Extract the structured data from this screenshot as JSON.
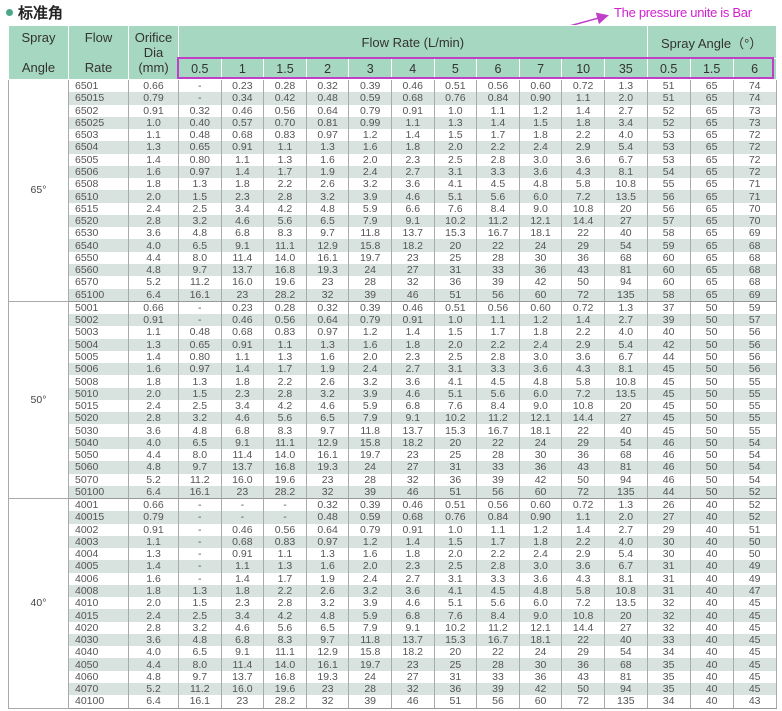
{
  "title": "标准角",
  "annotation": "The pressure unite is Bar",
  "colors": {
    "header": "#a6d7c0",
    "stripe": "#d8e2de",
    "annotation": "#c03fc8"
  },
  "headers": {
    "spray_angle": [
      "Spray",
      "Angle"
    ],
    "flow_rate": [
      "Flow",
      "Rate"
    ],
    "orifice": [
      "Orifice",
      "Dia",
      "(mm)"
    ],
    "flow_rate_group": "Flow Rate (L/min)",
    "spray_angle_group": "Spray Angle（°）",
    "pressures": [
      "0.5",
      "1",
      "1.5",
      "2",
      "3",
      "4",
      "5",
      "6",
      "7",
      "10",
      "35"
    ],
    "angle_pressures": [
      "0.5",
      "1.5",
      "6"
    ]
  },
  "groups": [
    {
      "angle": "65°",
      "rows": [
        [
          "6501",
          "0.66",
          "-",
          "0.23",
          "0.28",
          "0.32",
          "0.39",
          "0.46",
          "0.51",
          "0.56",
          "0.60",
          "0.72",
          "1.3",
          "51",
          "65",
          "74"
        ],
        [
          "65015",
          "0.79",
          "-",
          "0.34",
          "0.42",
          "0.48",
          "0.59",
          "0.68",
          "0.76",
          "0.84",
          "0.90",
          "1.1",
          "2.0",
          "51",
          "65",
          "74"
        ],
        [
          "6502",
          "0.91",
          "0.32",
          "0.46",
          "0.56",
          "0.64",
          "0.79",
          "0.91",
          "1.0",
          "1.1",
          "1.2",
          "1.4",
          "2.7",
          "52",
          "65",
          "73"
        ],
        [
          "65025",
          "1.0",
          "0.40",
          "0.57",
          "0.70",
          "0.81",
          "0.99",
          "1.1",
          "1.3",
          "1.4",
          "1.5",
          "1.8",
          "3.4",
          "52",
          "65",
          "73"
        ],
        [
          "6503",
          "1.1",
          "0.48",
          "0.68",
          "0.83",
          "0.97",
          "1.2",
          "1.4",
          "1.5",
          "1.7",
          "1.8",
          "2.2",
          "4.0",
          "53",
          "65",
          "72"
        ],
        [
          "6504",
          "1.3",
          "0.65",
          "0.91",
          "1.1",
          "1.3",
          "1.6",
          "1.8",
          "2.0",
          "2.2",
          "2.4",
          "2.9",
          "5.4",
          "53",
          "65",
          "72"
        ],
        [
          "6505",
          "1.4",
          "0.80",
          "1.1",
          "1.3",
          "1.6",
          "2.0",
          "2.3",
          "2.5",
          "2.8",
          "3.0",
          "3.6",
          "6.7",
          "53",
          "65",
          "72"
        ],
        [
          "6506",
          "1.6",
          "0.97",
          "1.4",
          "1.7",
          "1.9",
          "2.4",
          "2.7",
          "3.1",
          "3.3",
          "3.6",
          "4.3",
          "8.1",
          "54",
          "65",
          "72"
        ],
        [
          "6508",
          "1.8",
          "1.3",
          "1.8",
          "2.2",
          "2.6",
          "3.2",
          "3.6",
          "4.1",
          "4.5",
          "4.8",
          "5.8",
          "10.8",
          "55",
          "65",
          "71"
        ],
        [
          "6510",
          "2.0",
          "1.5",
          "2.3",
          "2.8",
          "3.2",
          "3.9",
          "4.6",
          "5.1",
          "5.6",
          "6.0",
          "7.2",
          "13.5",
          "56",
          "65",
          "71"
        ],
        [
          "6515",
          "2.4",
          "2.5",
          "3.4",
          "4.2",
          "4.8",
          "5.9",
          "6.6",
          "7.6",
          "8.4",
          "9.0",
          "10.8",
          "20",
          "56",
          "65",
          "70"
        ],
        [
          "6520",
          "2.8",
          "3.2",
          "4.6",
          "5.6",
          "6.5",
          "7.9",
          "9.1",
          "10.2",
          "11.2",
          "12.1",
          "14.4",
          "27",
          "57",
          "65",
          "70"
        ],
        [
          "6530",
          "3.6",
          "4.8",
          "6.8",
          "8.3",
          "9.7",
          "11.8",
          "13.7",
          "15.3",
          "16.7",
          "18.1",
          "22",
          "40",
          "58",
          "65",
          "69"
        ],
        [
          "6540",
          "4.0",
          "6.5",
          "9.1",
          "11.1",
          "12.9",
          "15.8",
          "18.2",
          "20",
          "22",
          "24",
          "29",
          "54",
          "59",
          "65",
          "68"
        ],
        [
          "6550",
          "4.4",
          "8.0",
          "11.4",
          "14.0",
          "16.1",
          "19.7",
          "23",
          "25",
          "28",
          "30",
          "36",
          "68",
          "60",
          "65",
          "68"
        ],
        [
          "6560",
          "4.8",
          "9.7",
          "13.7",
          "16.8",
          "19.3",
          "24",
          "27",
          "31",
          "33",
          "36",
          "43",
          "81",
          "60",
          "65",
          "68"
        ],
        [
          "6570",
          "5.2",
          "11.2",
          "16.0",
          "19.6",
          "23",
          "28",
          "32",
          "36",
          "39",
          "42",
          "50",
          "94",
          "60",
          "65",
          "68"
        ],
        [
          "65100",
          "6.4",
          "16.1",
          "23",
          "28.2",
          "32",
          "39",
          "46",
          "51",
          "56",
          "60",
          "72",
          "135",
          "58",
          "65",
          "69"
        ]
      ]
    },
    {
      "angle": "50°",
      "rows": [
        [
          "5001",
          "0.66",
          "-",
          "0.23",
          "0.28",
          "0.32",
          "0.39",
          "0.46",
          "0.51",
          "0.56",
          "0.60",
          "0.72",
          "1.3",
          "37",
          "50",
          "59"
        ],
        [
          "5002",
          "0.91",
          "-",
          "0.46",
          "0.56",
          "0.64",
          "0.79",
          "0.91",
          "1.0",
          "1.1",
          "1.2",
          "1.4",
          "2.7",
          "39",
          "50",
          "57"
        ],
        [
          "5003",
          "1.1",
          "0.48",
          "0.68",
          "0.83",
          "0.97",
          "1.2",
          "1.4",
          "1.5",
          "1.7",
          "1.8",
          "2.2",
          "4.0",
          "40",
          "50",
          "56"
        ],
        [
          "5004",
          "1.3",
          "0.65",
          "0.91",
          "1.1",
          "1.3",
          "1.6",
          "1.8",
          "2.0",
          "2.2",
          "2.4",
          "2.9",
          "5.4",
          "42",
          "50",
          "56"
        ],
        [
          "5005",
          "1.4",
          "0.80",
          "1.1",
          "1.3",
          "1.6",
          "2.0",
          "2.3",
          "2.5",
          "2.8",
          "3.0",
          "3.6",
          "6.7",
          "44",
          "50",
          "56"
        ],
        [
          "5006",
          "1.6",
          "0.97",
          "1.4",
          "1.7",
          "1.9",
          "2.4",
          "2.7",
          "3.1",
          "3.3",
          "3.6",
          "4.3",
          "8.1",
          "45",
          "50",
          "56"
        ],
        [
          "5008",
          "1.8",
          "1.3",
          "1.8",
          "2.2",
          "2.6",
          "3.2",
          "3.6",
          "4.1",
          "4.5",
          "4.8",
          "5.8",
          "10.8",
          "45",
          "50",
          "55"
        ],
        [
          "5010",
          "2.0",
          "1.5",
          "2.3",
          "2.8",
          "3.2",
          "3.9",
          "4.6",
          "5.1",
          "5.6",
          "6.0",
          "7.2",
          "13.5",
          "45",
          "50",
          "55"
        ],
        [
          "5015",
          "2.4",
          "2.5",
          "3.4",
          "4.2",
          "4.6",
          "5.9",
          "6.8",
          "7.6",
          "8.4",
          "9.0",
          "10.8",
          "20",
          "45",
          "50",
          "55"
        ],
        [
          "5020",
          "2.8",
          "3.2",
          "4.6",
          "5.6",
          "6.5",
          "7.9",
          "9.1",
          "10.2",
          "11.2",
          "12.1",
          "14.4",
          "27",
          "45",
          "50",
          "55"
        ],
        [
          "5030",
          "3.6",
          "4.8",
          "6.8",
          "8.3",
          "9.7",
          "11.8",
          "13.7",
          "15.3",
          "16.7",
          "18.1",
          "22",
          "40",
          "45",
          "50",
          "55"
        ],
        [
          "5040",
          "4.0",
          "6.5",
          "9.1",
          "11.1",
          "12.9",
          "15.8",
          "18.2",
          "20",
          "22",
          "24",
          "29",
          "54",
          "46",
          "50",
          "54"
        ],
        [
          "5050",
          "4.4",
          "8.0",
          "11.4",
          "14.0",
          "16.1",
          "19.7",
          "23",
          "25",
          "28",
          "30",
          "36",
          "68",
          "46",
          "50",
          "54"
        ],
        [
          "5060",
          "4.8",
          "9.7",
          "13.7",
          "16.8",
          "19.3",
          "24",
          "27",
          "31",
          "33",
          "36",
          "43",
          "81",
          "46",
          "50",
          "54"
        ],
        [
          "5070",
          "5.2",
          "11.2",
          "16.0",
          "19.6",
          "23",
          "28",
          "32",
          "36",
          "39",
          "42",
          "50",
          "94",
          "46",
          "50",
          "54"
        ],
        [
          "50100",
          "6.4",
          "16.1",
          "23",
          "28.2",
          "32",
          "39",
          "46",
          "51",
          "56",
          "60",
          "72",
          "135",
          "44",
          "50",
          "52"
        ]
      ]
    },
    {
      "angle": "40°",
      "rows": [
        [
          "4001",
          "0.66",
          "-",
          "-",
          "-",
          "0.32",
          "0.39",
          "0.46",
          "0.51",
          "0.56",
          "0.60",
          "0.72",
          "1.3",
          "26",
          "40",
          "52"
        ],
        [
          "40015",
          "0.79",
          "-",
          "-",
          "-",
          "0.48",
          "0.59",
          "0.68",
          "0.76",
          "0.84",
          "0.90",
          "1.1",
          "2.0",
          "27",
          "40",
          "52"
        ],
        [
          "4002",
          "0.91",
          "-",
          "0.46",
          "0.56",
          "0.64",
          "0.79",
          "0.91",
          "1.0",
          "1.1",
          "1.2",
          "1.4",
          "2.7",
          "29",
          "40",
          "51"
        ],
        [
          "4003",
          "1.1",
          "-",
          "0.68",
          "0.83",
          "0.97",
          "1.2",
          "1.4",
          "1.5",
          "1.7",
          "1.8",
          "2.2",
          "4.0",
          "30",
          "40",
          "50"
        ],
        [
          "4004",
          "1.3",
          "-",
          "0.91",
          "1.1",
          "1.3",
          "1.6",
          "1.8",
          "2.0",
          "2.2",
          "2.4",
          "2.9",
          "5.4",
          "30",
          "40",
          "50"
        ],
        [
          "4005",
          "1.4",
          "-",
          "1.1",
          "1.3",
          "1.6",
          "2.0",
          "2.3",
          "2.5",
          "2.8",
          "3.0",
          "3.6",
          "6.7",
          "31",
          "40",
          "49"
        ],
        [
          "4006",
          "1.6",
          "-",
          "1.4",
          "1.7",
          "1.9",
          "2.4",
          "2.7",
          "3.1",
          "3.3",
          "3.6",
          "4.3",
          "8.1",
          "31",
          "40",
          "49"
        ],
        [
          "4008",
          "1.8",
          "1.3",
          "1.8",
          "2.2",
          "2.6",
          "3.2",
          "3.6",
          "4.1",
          "4.5",
          "4.8",
          "5.8",
          "10.8",
          "31",
          "40",
          "47"
        ],
        [
          "4010",
          "2.0",
          "1.5",
          "2.3",
          "2.8",
          "3.2",
          "3.9",
          "4.6",
          "5.1",
          "5.6",
          "6.0",
          "7.2",
          "13.5",
          "32",
          "40",
          "45"
        ],
        [
          "4015",
          "2.4",
          "2.5",
          "3.4",
          "4.2",
          "4.8",
          "5.9",
          "6.8",
          "7.6",
          "8.4",
          "9.0",
          "10.8",
          "20",
          "32",
          "40",
          "45"
        ],
        [
          "4020",
          "2.8",
          "3.2",
          "4.6",
          "5.6",
          "6.5",
          "7.9",
          "9.1",
          "10.2",
          "11.2",
          "12.1",
          "14.4",
          "27",
          "32",
          "40",
          "45"
        ],
        [
          "4030",
          "3.6",
          "4.8",
          "6.8",
          "8.3",
          "9.7",
          "11.8",
          "13.7",
          "15.3",
          "16.7",
          "18.1",
          "22",
          "40",
          "33",
          "40",
          "45"
        ],
        [
          "4040",
          "4.0",
          "6.5",
          "9.1",
          "11.1",
          "12.9",
          "15.8",
          "18.2",
          "20",
          "22",
          "24",
          "29",
          "54",
          "34",
          "40",
          "45"
        ],
        [
          "4050",
          "4.4",
          "8.0",
          "11.4",
          "14.0",
          "16.1",
          "19.7",
          "23",
          "25",
          "28",
          "30",
          "36",
          "68",
          "35",
          "40",
          "45"
        ],
        [
          "4060",
          "4.8",
          "9.7",
          "13.7",
          "16.8",
          "19.3",
          "24",
          "27",
          "31",
          "33",
          "36",
          "43",
          "81",
          "35",
          "40",
          "45"
        ],
        [
          "4070",
          "5.2",
          "11.2",
          "16.0",
          "19.6",
          "23",
          "28",
          "32",
          "36",
          "39",
          "42",
          "50",
          "94",
          "35",
          "40",
          "45"
        ],
        [
          "40100",
          "6.4",
          "16.1",
          "23",
          "28.2",
          "32",
          "39",
          "46",
          "51",
          "56",
          "60",
          "72",
          "135",
          "34",
          "40",
          "43"
        ]
      ]
    }
  ]
}
